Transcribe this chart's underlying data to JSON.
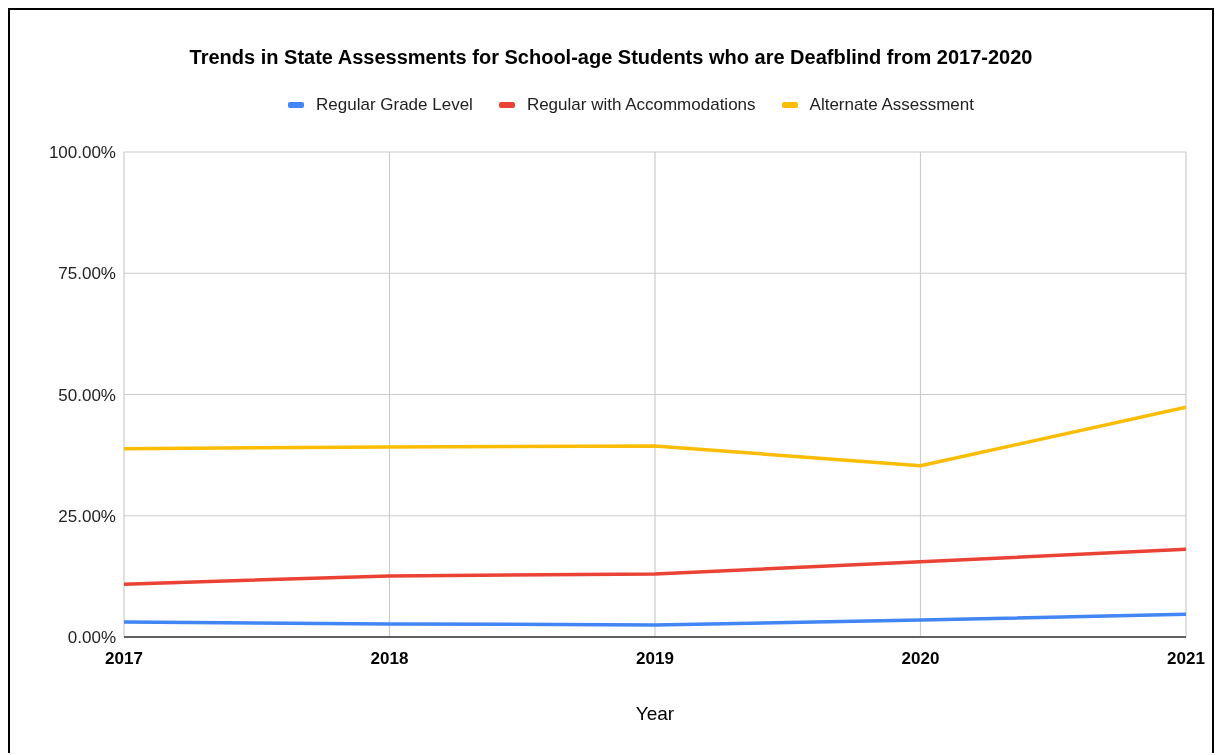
{
  "chart_data": {
    "type": "line",
    "title": "Trends in State Assessments for School-age Students who are Deafblind from 2017-2020",
    "xlabel": "Year",
    "categories": [
      "2017",
      "2018",
      "2019",
      "2020",
      "2021"
    ],
    "series": [
      {
        "name": "Regular Grade Level",
        "color": "#4285f4",
        "values": [
          3.1,
          2.7,
          2.5,
          3.5,
          4.7
        ]
      },
      {
        "name": "Regular with Accommodations",
        "color": "#ea4335",
        "values": [
          10.9,
          12.6,
          13.0,
          15.5,
          18.1
        ]
      },
      {
        "name": "Alternate Assessment",
        "color": "#fbbc04",
        "values": [
          38.8,
          39.2,
          39.4,
          35.3,
          47.4
        ]
      }
    ],
    "ylim": [
      0,
      100
    ],
    "yticks": [
      {
        "value": 0,
        "label": "0.00%"
      },
      {
        "value": 25,
        "label": "25.00%"
      },
      {
        "value": 50,
        "label": "50.00%"
      },
      {
        "value": 75,
        "label": "75.00%"
      },
      {
        "value": 100,
        "label": "100.00%"
      }
    ],
    "grid": true,
    "legend": "top"
  }
}
